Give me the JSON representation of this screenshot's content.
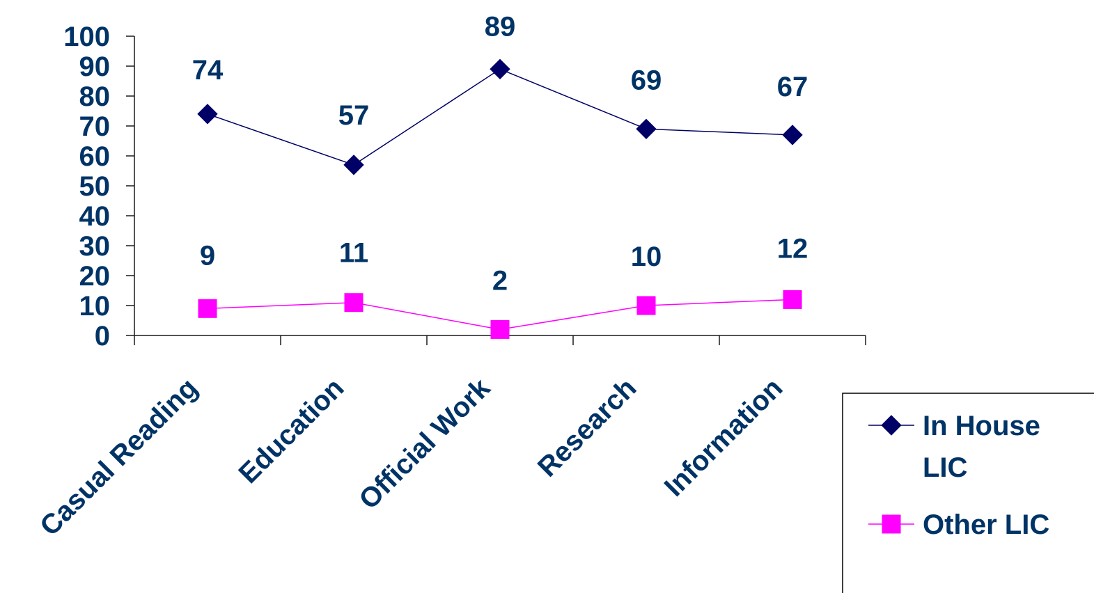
{
  "chart_data": {
    "type": "line",
    "title": "",
    "xlabel": "",
    "ylabel": "",
    "categories": [
      "Casual Reading",
      "Education",
      "Official Work",
      "Research",
      "Information"
    ],
    "ylim": [
      0,
      100
    ],
    "yticks": [
      "0",
      "10",
      "20",
      "30",
      "40",
      "50",
      "60",
      "70",
      "80",
      "90",
      "100"
    ],
    "series": [
      {
        "name": "In House LIC",
        "name_lines": [
          "In House",
          "LIC"
        ],
        "values": [
          74,
          57,
          89,
          69,
          67
        ],
        "labels": [
          "74",
          "57",
          "89",
          "69",
          "67"
        ],
        "color": "#000066",
        "marker": "diamond"
      },
      {
        "name": "Other LIC",
        "name_lines": [
          "Other LIC"
        ],
        "values": [
          9,
          11,
          2,
          10,
          12
        ],
        "labels": [
          "9",
          "11",
          "2",
          "10",
          "12"
        ],
        "color": "#ff00ff",
        "marker": "square"
      }
    ],
    "text_color": "#003366",
    "axis_color": "#1a1a1a",
    "grid": false,
    "legend_position": "bottom-right"
  }
}
